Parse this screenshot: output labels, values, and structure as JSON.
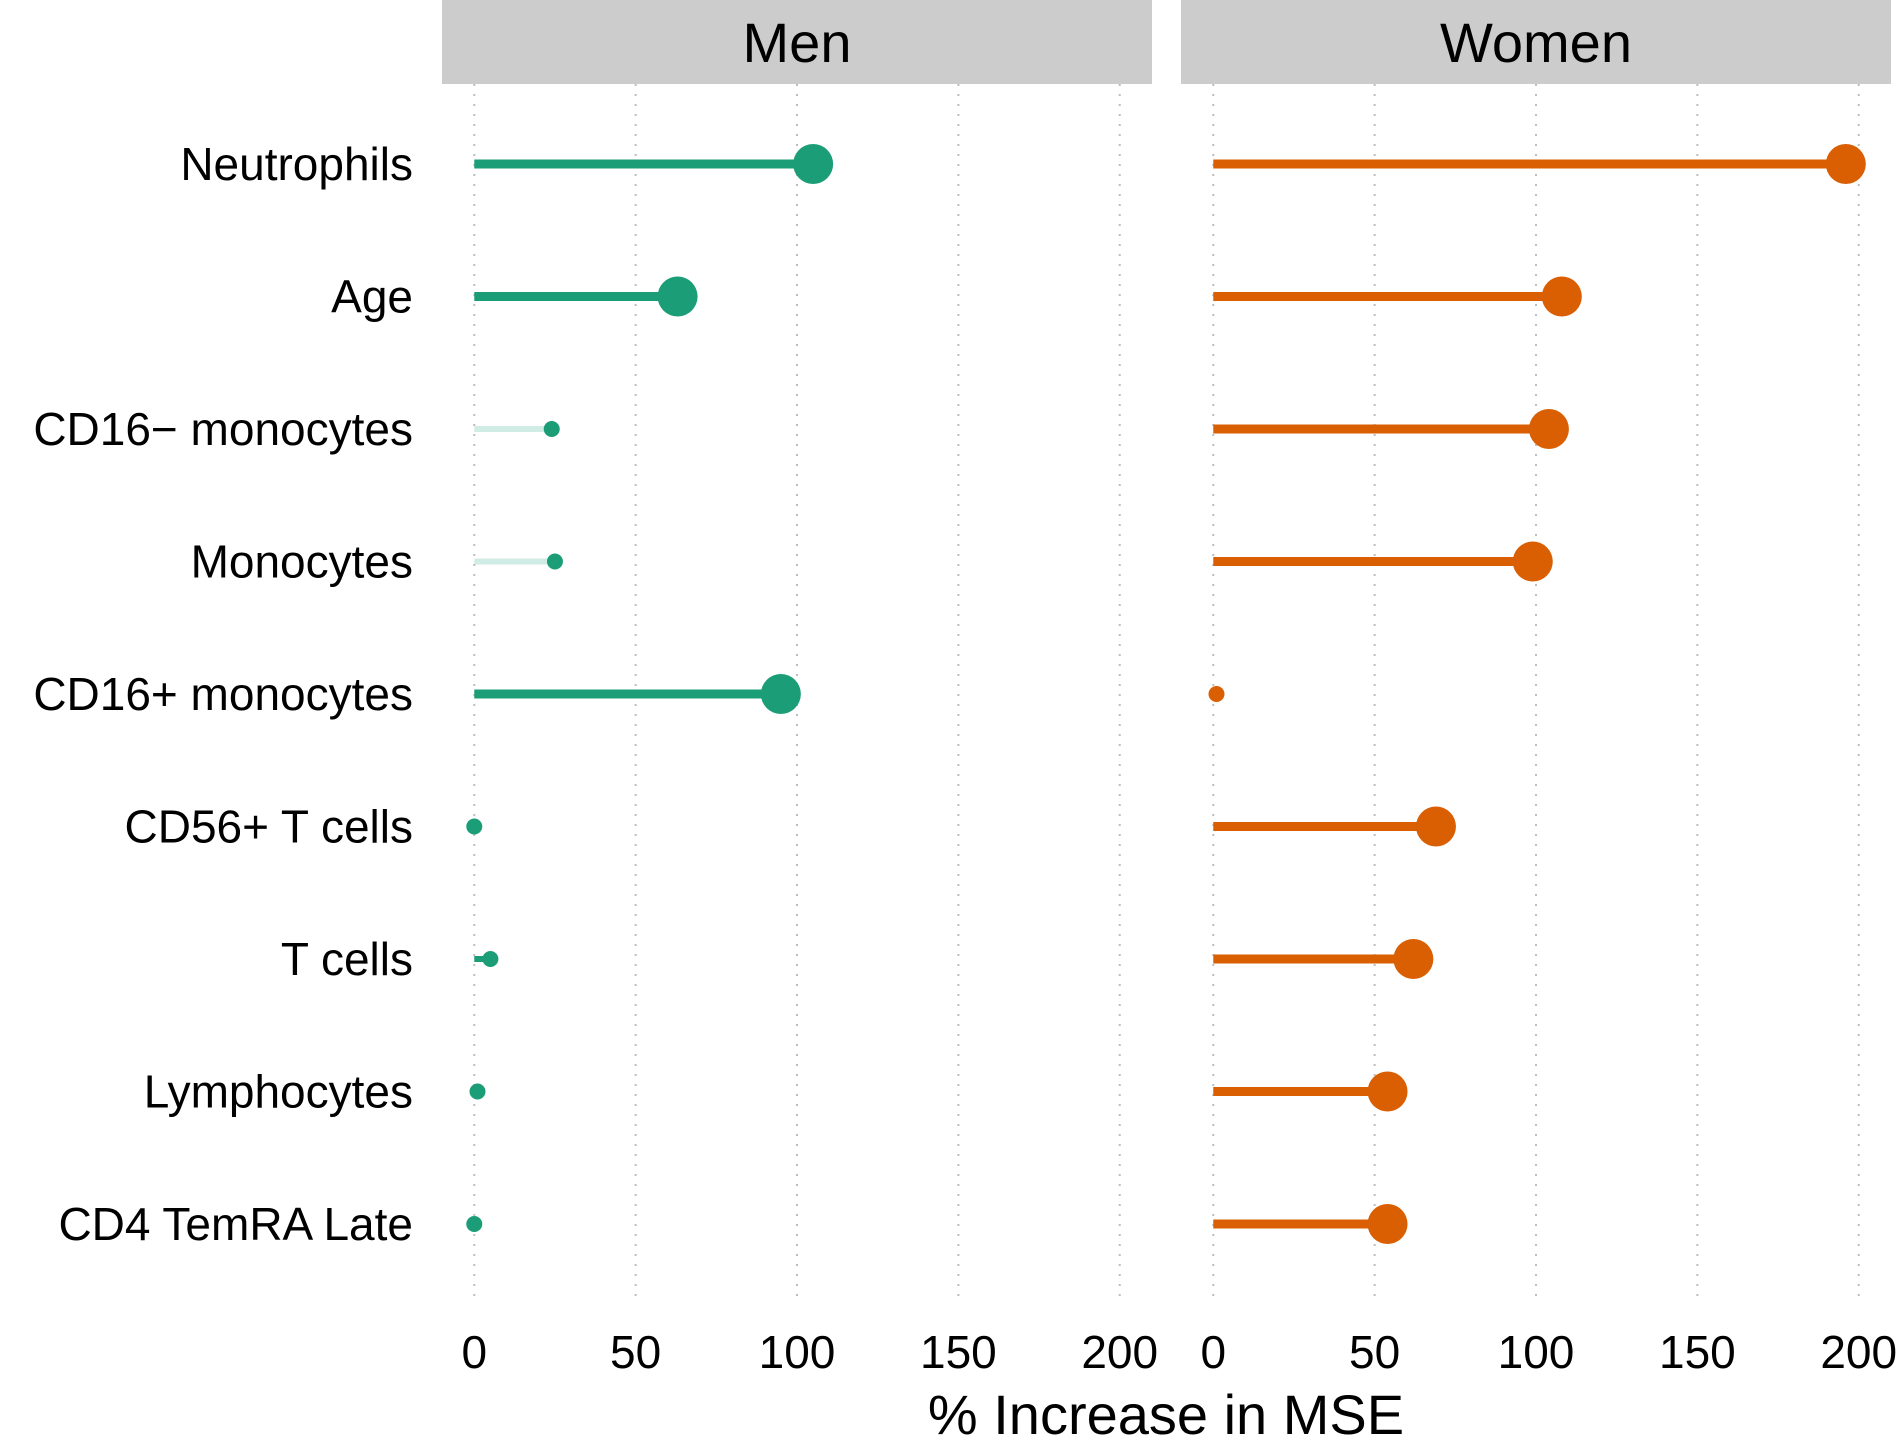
{
  "chart_data": {
    "type": "lollipop",
    "xlabel": "% Increase in MSE",
    "xlim": [
      -10,
      210
    ],
    "x_ticks": [
      0,
      50,
      100,
      150,
      200
    ],
    "grid": "vertical dotted",
    "categories": [
      "Neutrophils",
      "Age",
      "CD16− monocytes",
      "Monocytes",
      "CD16+ monocytes",
      "CD56+ T cells",
      "T cells",
      "Lymphocytes",
      "CD4 TemRA Late"
    ],
    "panels": [
      {
        "name": "Men",
        "color": "#1b9e77",
        "values": [
          105,
          63,
          24,
          25,
          95,
          0,
          5,
          1,
          0
        ],
        "faded": [
          false,
          false,
          true,
          true,
          false,
          false,
          false,
          false,
          false
        ],
        "sizes": [
          "large",
          "large",
          "small",
          "small",
          "large",
          "small",
          "small",
          "small",
          "small"
        ]
      },
      {
        "name": "Women",
        "color": "#d95f02",
        "values": [
          196,
          108,
          104,
          99,
          1,
          69,
          62,
          54,
          54
        ],
        "faded": [
          false,
          false,
          false,
          false,
          false,
          false,
          false,
          false,
          false
        ],
        "sizes": [
          "large",
          "large",
          "large",
          "large",
          "small",
          "large",
          "large",
          "large",
          "large"
        ]
      }
    ]
  }
}
